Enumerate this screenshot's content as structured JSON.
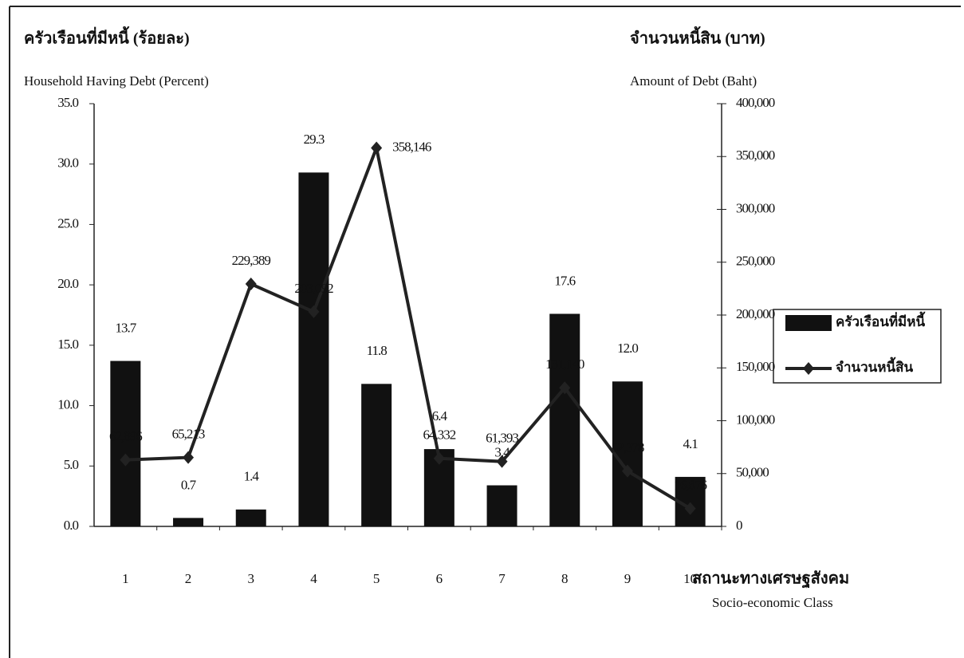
{
  "chart_data": {
    "type": "bar",
    "title_left_th": "ครัวเรือนที่มีหนี้ (ร้อยละ)",
    "ylabel": "Household Having Debt (Percent)",
    "title_right_th": "จำนวนหนี้สิน (บาท)",
    "y2label": "Amount of Debt (Baht)",
    "xlabel_th": "สถานะทางเศรษฐสังคม",
    "xlabel": "Socio-economic Class",
    "categories": [
      "1",
      "2",
      "3",
      "4",
      "5",
      "6",
      "7",
      "8",
      "9",
      "10"
    ],
    "series": [
      {
        "name": "ครัวเรือนที่มีหนี้",
        "type": "bar",
        "color": "#111111",
        "values": [
          13.7,
          0.7,
          1.4,
          29.3,
          11.8,
          6.4,
          3.4,
          17.6,
          12.0,
          4.1
        ],
        "value_labels": [
          "13.7",
          "0.7",
          "1.4",
          "29.3",
          "11.8",
          "6.4",
          "3.4",
          "17.6",
          "12.0",
          "4.1"
        ]
      },
      {
        "name": "จำนวนหนี้สิน",
        "type": "line",
        "axis": "y2",
        "color": "#222222",
        "values": [
          62896,
          65213,
          229389,
          203092,
          358146,
          64332,
          61393,
          131140,
          52378,
          16876
        ],
        "value_labels": [
          "62,896",
          "65,213",
          "229,389",
          "203,092",
          "358,146",
          "64,332",
          "61,393",
          "131,140",
          "52,378",
          "16,876"
        ]
      }
    ],
    "ylim": [
      0,
      35
    ],
    "yticks": [
      {
        "value": 0,
        "label": "0.0"
      },
      {
        "value": 5,
        "label": "5.0"
      },
      {
        "value": 10,
        "label": "10.0"
      },
      {
        "value": 15,
        "label": "15.0"
      },
      {
        "value": 20,
        "label": "20.0"
      },
      {
        "value": 25,
        "label": "25.0"
      },
      {
        "value": 30,
        "label": "30.0"
      },
      {
        "value": 35,
        "label": "35.0"
      }
    ],
    "y2lim": [
      0,
      400000
    ],
    "y2ticks": [
      0,
      {
        "value": 50000,
        "label": "50,000"
      },
      {
        "value": 100000,
        "label": "100,000"
      },
      {
        "value": 150000,
        "label": "150,000"
      },
      {
        "value": 200000,
        "label": "200,000"
      },
      {
        "value": 250000,
        "label": "250,000"
      },
      {
        "value": 300000,
        "label": "300,000"
      },
      {
        "value": 350000,
        "label": "350,000"
      },
      {
        "value": 400000,
        "label": "400,000"
      }
    ],
    "legend": "right"
  }
}
